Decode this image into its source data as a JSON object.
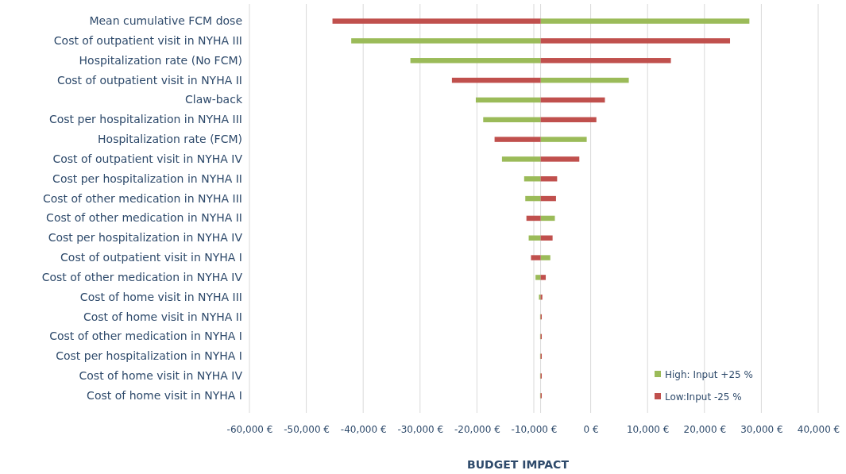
{
  "chart_data": {
    "type": "bar",
    "orientation": "horizontal",
    "xlabel": "BUDGET IMPACT",
    "categories": [
      "Mean cumulative FCM dose",
      "Cost of outpatient visit in NYHA III",
      "Hospitalization rate (No FCM)",
      "Cost of outpatient visit in NYHA II",
      "Claw-back",
      "Cost per hospitalization in NYHA III",
      "Hospitalization rate (FCM)",
      "Cost of outpatient visit in NYHA IV",
      "Cost per hospitalization in NYHA II",
      "Cost of other medication in NYHA III",
      "Cost of other medication in NYHA II",
      "Cost per hospitalization in NYHA IV",
      "Cost of outpatient visit in NYHA I",
      "Cost of other medication in NYHA IV",
      "Cost of home visit in NYHA III",
      "Cost of home visit in NYHA II",
      "Cost of other medication in NYHA I",
      "Cost per hospitalization in NYHA I",
      "Cost of home visit in NYHA IV",
      "Cost of home visit in NYHA I"
    ],
    "series": [
      {
        "name": "High: Input +25 %",
        "color": "#9bbb59",
        "base": [
          -8800,
          -8800,
          -8800,
          -8800,
          -8800,
          -8800,
          -8800,
          -8800,
          -8800,
          -8800,
          -8800,
          -8800,
          -8800,
          -8800,
          -8800,
          -8800,
          -8800,
          -8800,
          -8800,
          -8800
        ],
        "values": [
          36700,
          -33300,
          -22900,
          15500,
          -11400,
          -10100,
          8100,
          -6800,
          -2900,
          -2700,
          2500,
          -2100,
          1700,
          -900,
          -300,
          -100,
          -100,
          -100,
          -100,
          -100
        ]
      },
      {
        "name": "Low:Input -25 %",
        "color": "#c0504d",
        "base": [
          -8800,
          -8800,
          -8800,
          -8800,
          -8800,
          -8800,
          -8800,
          -8800,
          -8800,
          -8800,
          -8800,
          -8800,
          -8800,
          -8800,
          -8800,
          -8800,
          -8800,
          -8800,
          -8800,
          -8800
        ],
        "values": [
          -36600,
          33300,
          22900,
          -15600,
          11300,
          9800,
          -8100,
          6800,
          2900,
          2700,
          -2500,
          2100,
          -1700,
          900,
          300,
          200,
          200,
          200,
          200,
          200
        ]
      }
    ],
    "xlim": [
      -60000,
      40000
    ],
    "xticks": [
      {
        "value": -60000,
        "label": "-60,000 €"
      },
      {
        "value": -50000,
        "label": "-50,000 €"
      },
      {
        "value": -40000,
        "label": "-40,000 €"
      },
      {
        "value": -30000,
        "label": "-30,000 €"
      },
      {
        "value": -20000,
        "label": "-20,000 €"
      },
      {
        "value": -10000,
        "label": "-10,000 €"
      },
      {
        "value": 0,
        "label": "0 €"
      },
      {
        "value": 10000,
        "label": "10,000 €"
      },
      {
        "value": 20000,
        "label": "20,000 €"
      },
      {
        "value": 30000,
        "label": "30,000 €"
      },
      {
        "value": 40000,
        "label": "40,000 €"
      }
    ],
    "grid": "x",
    "legend": "bottom right"
  }
}
